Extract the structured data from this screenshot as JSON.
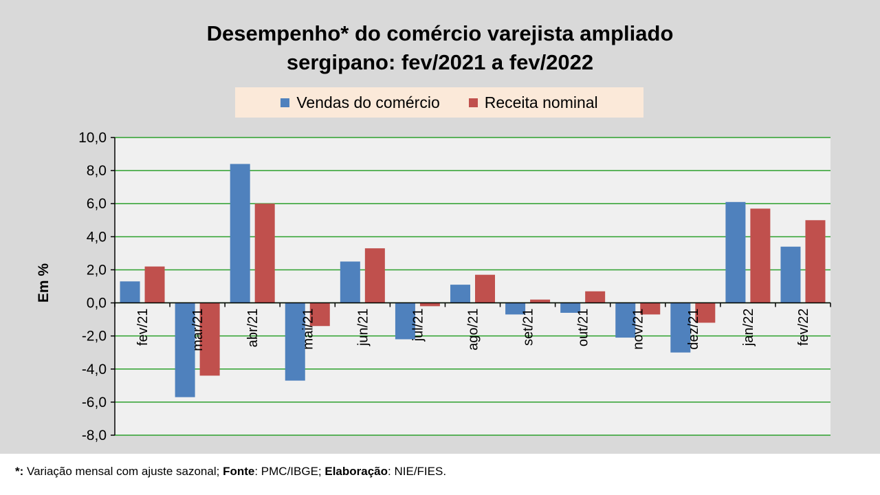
{
  "chart_data": {
    "type": "bar",
    "title_line1": "Desempenho* do comércio varejista ampliado",
    "title_line2": "sergipano: fev/2021 a fev/2022",
    "ylabel": "Em %",
    "ylim": [
      -8,
      10
    ],
    "yticks": [
      "10,0",
      "8,0",
      "6,0",
      "4,0",
      "2,0",
      "0,0",
      "-2,0",
      "-4,0",
      "-6,0",
      "-8,0"
    ],
    "ytick_values": [
      10,
      8,
      6,
      4,
      2,
      0,
      -2,
      -4,
      -6,
      -8
    ],
    "categories": [
      "fev/21",
      "mar/21",
      "abr/21",
      "mai/21",
      "jun/21",
      "jul/21",
      "ago/21",
      "set/21",
      "out/21",
      "nov/21",
      "dez/21",
      "jan/22",
      "fev/22"
    ],
    "series": [
      {
        "name": "Vendas do comércio",
        "color": "#4f81bd",
        "values": [
          1.3,
          -5.7,
          8.4,
          -4.7,
          2.5,
          -2.2,
          1.1,
          -0.7,
          -0.6,
          -2.1,
          -3.0,
          6.1,
          3.4
        ]
      },
      {
        "name": "Receita nominal",
        "color": "#c0504d",
        "values": [
          2.2,
          -4.4,
          6.0,
          -1.4,
          3.3,
          -0.2,
          1.7,
          0.2,
          0.7,
          -0.7,
          -1.2,
          5.7,
          5.0
        ]
      }
    ],
    "gridlines": true,
    "legend_position": "top"
  },
  "footnote": {
    "star": "*:",
    "text1": " Variação mensal com ajuste sazonal; ",
    "fonte_label": "Fonte",
    "text2": ": PMC/IBGE; ",
    "elab_label": "Elaboração",
    "text3": ": NIE/FIES."
  }
}
